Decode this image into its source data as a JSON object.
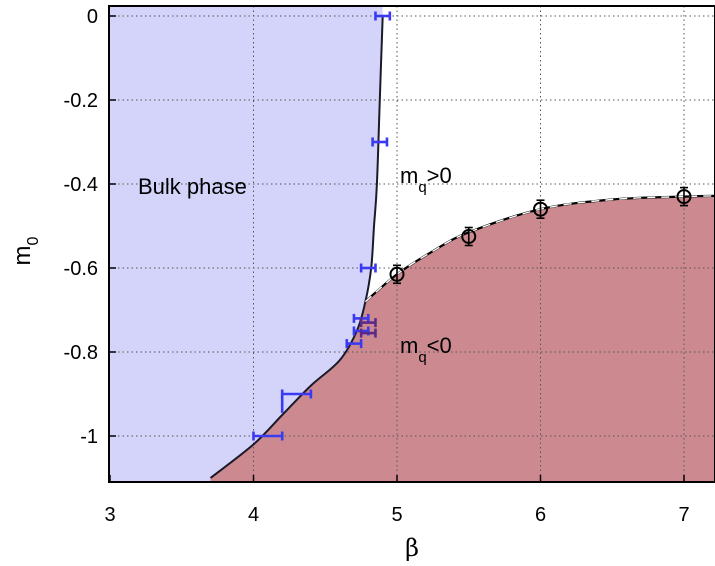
{
  "chart_data": {
    "type": "scatter",
    "title": "",
    "xlabel": "β",
    "ylabel": "m",
    "ylabel_sub": "0",
    "xlim": [
      3,
      7.25
    ],
    "ylim": [
      -1.1,
      0.02
    ],
    "xticks": [
      3,
      4,
      5,
      6,
      7
    ],
    "yticks": [
      0,
      -0.2,
      -0.4,
      -0.6,
      -0.8,
      -1
    ],
    "grid": true,
    "regions": {
      "bulk": {
        "label": "Bulk phase",
        "color": "#d4d4fb"
      },
      "positive": {
        "label_main": "m",
        "label_sub": "q",
        "label_rest": ">0"
      },
      "negative": {
        "label_main": "m",
        "label_sub": "q",
        "label_rest": "<0",
        "color": "#cc8a90"
      }
    },
    "bulk_boundary": [
      {
        "x": 4.9,
        "y": 0.0
      },
      {
        "x": 4.88,
        "y": -0.2
      },
      {
        "x": 4.86,
        "y": -0.4
      },
      {
        "x": 4.84,
        "y": -0.5
      },
      {
        "x": 4.82,
        "y": -0.6
      },
      {
        "x": 4.78,
        "y": -0.68
      },
      {
        "x": 4.72,
        "y": -0.75
      },
      {
        "x": 4.6,
        "y": -0.82
      },
      {
        "x": 4.4,
        "y": -0.88
      },
      {
        "x": 4.2,
        "y": -0.95
      },
      {
        "x": 4.0,
        "y": -1.02
      },
      {
        "x": 3.7,
        "y": -1.1
      }
    ],
    "sign_boundary": [
      {
        "x": 4.78,
        "y": -0.68
      },
      {
        "x": 5.0,
        "y": -0.615
      },
      {
        "x": 5.25,
        "y": -0.56
      },
      {
        "x": 5.5,
        "y": -0.515
      },
      {
        "x": 6.0,
        "y": -0.46
      },
      {
        "x": 6.5,
        "y": -0.437
      },
      {
        "x": 7.0,
        "y": -0.43
      },
      {
        "x": 7.25,
        "y": -0.428
      }
    ],
    "series": [
      {
        "marker": "circle",
        "color": "#000000",
        "points": [
          {
            "x": 5.0,
            "y": -0.615
          },
          {
            "x": 5.5,
            "y": -0.525
          },
          {
            "x": 6.0,
            "y": -0.46
          },
          {
            "x": 7.0,
            "y": -0.43
          }
        ]
      },
      {
        "marker": "xerror",
        "color": "#3a3af0",
        "points": [
          {
            "x": 4.9,
            "y": 0.0,
            "xerr": 0.05
          },
          {
            "x": 4.88,
            "y": -0.3,
            "xerr": 0.05
          },
          {
            "x": 4.8,
            "y": -0.6,
            "xerr": 0.05
          },
          {
            "x": 4.75,
            "y": -0.72,
            "xerr": 0.05
          },
          {
            "x": 4.75,
            "y": -0.75,
            "xerr": 0.05
          },
          {
            "x": 4.7,
            "y": -0.78,
            "xerr": 0.05
          },
          {
            "x": 4.3,
            "y": -0.9,
            "xerr": 0.1
          },
          {
            "x": 4.1,
            "y": -1.0,
            "xerr": 0.1
          }
        ]
      },
      {
        "marker": "xerror",
        "color": "#5a2a8a",
        "points": [
          {
            "x": 4.8,
            "y": -0.73,
            "xerr": 0.05
          },
          {
            "x": 4.8,
            "y": -0.755,
            "xerr": 0.05
          }
        ]
      },
      {
        "marker": "vbar",
        "color": "#3a3af0",
        "points": [
          {
            "x": 4.2,
            "y1": -0.9,
            "y2": -0.945
          }
        ]
      }
    ]
  }
}
